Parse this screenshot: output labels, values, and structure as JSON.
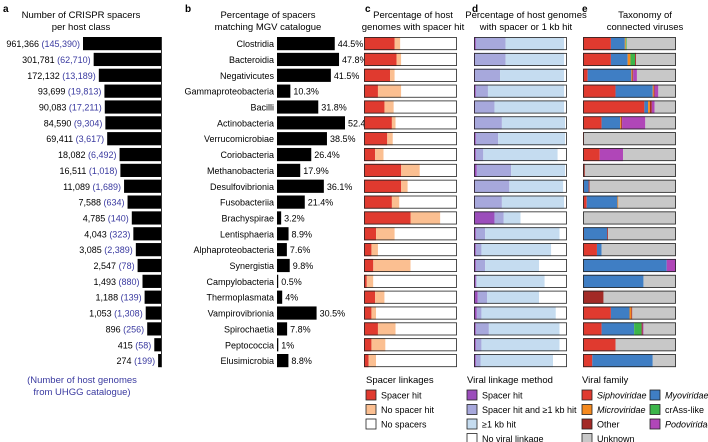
{
  "panels": {
    "a": {
      "letter": "a",
      "title_lines": [
        "Number of CRISPR spacers",
        "per host class"
      ],
      "footnote_lines": [
        "(Number of host genomes",
        "from UHGG catalogue)"
      ]
    },
    "b": {
      "letter": "b",
      "title_lines": [
        "Percentage of spacers",
        "matching MGV catalogue"
      ]
    },
    "c": {
      "letter": "c",
      "title_lines": [
        "Percentage of host",
        "genomes with spacer hit"
      ]
    },
    "d": {
      "letter": "d",
      "title_lines": [
        "Percentage of host genomes",
        "with spacer or 1 kb hit"
      ]
    },
    "e": {
      "letter": "e",
      "title_lines": [
        "Taxonomy of",
        "connected viruses"
      ]
    }
  },
  "legends": {
    "c": {
      "title": "Spacer linkages",
      "items": [
        {
          "label": "Spacer hit",
          "color": "#e03a2f"
        },
        {
          "label": "No spacer hit",
          "color": "#fbbf91"
        },
        {
          "label": "No spacers",
          "color": "#ffffff"
        }
      ]
    },
    "d": {
      "title": "Viral linkage method",
      "items": [
        {
          "label": "Spacer hit",
          "color": "#9b4dbb"
        },
        {
          "label": "Spacer hit and ≥1 kb hit",
          "color": "#a7a8dc"
        },
        {
          "label": "≥1 kb hit",
          "color": "#c5dcf0"
        },
        {
          "label": "No viral linkage",
          "color": "#ffffff"
        }
      ]
    },
    "e": {
      "title": "Viral family",
      "items": [
        {
          "label": "Siphoviridae",
          "color": "#e03a2f",
          "italic": true
        },
        {
          "label": "Myoviridae",
          "color": "#3f7ec4",
          "italic": true
        },
        {
          "label": "Microviridae",
          "color": "#f58a1f",
          "italic": true
        },
        {
          "label": "crAss-like",
          "color": "#3cb54a",
          "italic": false
        },
        {
          "label": "Other",
          "color": "#a32a26",
          "italic": false
        },
        {
          "label": "Podoviridae",
          "color": "#b046b8",
          "italic": true
        },
        {
          "label": "Unknown",
          "color": "#c8c8c8",
          "italic": false
        }
      ]
    }
  },
  "chart_data": [
    {
      "panel": "a",
      "type": "bar",
      "orientation": "horizontal",
      "title": "Number of CRISPR spacers per host class",
      "values": [
        961366,
        301781,
        172132,
        93699,
        90083,
        84590,
        69411,
        18082,
        16511,
        11089,
        7588,
        4785,
        4043,
        3085,
        2547,
        1493,
        1188,
        1053,
        896,
        415,
        274
      ],
      "value_labels": [
        "961,366",
        "301,781",
        "172,132",
        "93,699",
        "90,083",
        "84,590",
        "69,411",
        "18,082",
        "16,511",
        "11,089",
        "7,588",
        "4,785",
        "4,043",
        "3,085",
        "2,547",
        "1,493",
        "1,188",
        "1,053",
        "896",
        "415",
        "274"
      ],
      "genome_labels": [
        "(145,390)",
        "(62,710)",
        "(13,189)",
        "(19,813)",
        "(17,211)",
        "(9,304)",
        "(3,617)",
        "(6,492)",
        "(1,018)",
        "(1,689)",
        "(634)",
        "(140)",
        "(323)",
        "(2,389)",
        "(78)",
        "(880)",
        "(139)",
        "(1,308)",
        "(256)",
        "(58)",
        "(199)"
      ]
    },
    {
      "panel": "b",
      "type": "bar",
      "orientation": "horizontal",
      "title": "Percentage of spacers matching MGV catalogue",
      "categories": [
        "Clostridia",
        "Bacteroidia",
        "Negativicutes",
        "Gammaproteobacteria",
        "Bacilli",
        "Actinobacteria",
        "Verrucomicrobiae",
        "Coriobacteria",
        "Methanobacteria",
        "Desulfovibrionia",
        "Fusobacteriia",
        "Brachyspirae",
        "Lentisphaeria",
        "Alphaproteobacteria",
        "Synergistia",
        "Campylobacteria",
        "Thermoplasmata",
        "Vampirovibrionia",
        "Spirochaetia",
        "Peptococcia",
        "Elusimicrobia"
      ],
      "values": [
        44.5,
        47.8,
        41.5,
        10.3,
        31.8,
        52.4,
        38.5,
        26.4,
        17.9,
        36.1,
        21.4,
        3.2,
        8.9,
        7.6,
        9.8,
        0.5,
        4,
        30.5,
        7.8,
        1,
        8.8
      ],
      "value_labels": [
        "44.5%",
        "47.8%",
        "41.5%",
        "10.3%",
        "31.8%",
        "52.4%",
        "38.5%",
        "26.4%",
        "17.9%",
        "36.1%",
        "21.4%",
        "3.2%",
        "8.9%",
        "7.6%",
        "9.8%",
        "0.5%",
        "4%",
        "30.5%",
        "7.8%",
        "1%",
        "8.8%"
      ],
      "xlim": [
        0,
        60
      ]
    },
    {
      "panel": "c",
      "type": "bar",
      "orientation": "horizontal",
      "stacked": true,
      "unit": "percent",
      "title": "Percentage of host genomes with spacer hit",
      "series": [
        {
          "name": "Spacer hit",
          "color": "#e03a2f",
          "values": [
            33,
            35,
            28,
            15,
            22,
            30,
            25,
            12,
            40,
            40,
            30,
            50,
            13,
            8,
            10,
            3,
            12,
            8,
            15,
            8,
            5
          ]
        },
        {
          "name": "No spacer hit",
          "color": "#fbbf91",
          "values": [
            6,
            5,
            5,
            25,
            10,
            4,
            6,
            9,
            20,
            7,
            8,
            32,
            20,
            7,
            40,
            7,
            10,
            5,
            19,
            15,
            8
          ]
        },
        {
          "name": "No spacers",
          "color": "#ffffff",
          "values": [
            61,
            60,
            67,
            60,
            68,
            66,
            69,
            79,
            40,
            53,
            62,
            18,
            67,
            85,
            50,
            90,
            78,
            87,
            66,
            77,
            87
          ]
        }
      ]
    },
    {
      "panel": "d",
      "type": "bar",
      "orientation": "horizontal",
      "stacked": true,
      "unit": "percent",
      "title": "Percentage of host genomes with spacer or 1 kb hit",
      "series": [
        {
          "name": "Spacer hit",
          "color": "#9b4dbb",
          "values": [
            2,
            1,
            1,
            2,
            1,
            1,
            2,
            2,
            3,
            1,
            1,
            22,
            2,
            2,
            2,
            2,
            4,
            3,
            2,
            2,
            2
          ]
        },
        {
          "name": "Spacer hit and ≥1 kb hit",
          "color": "#a7a8dc",
          "values": [
            32,
            33,
            27,
            13,
            21,
            29,
            24,
            8,
            37,
            37,
            29,
            10,
            10,
            6,
            10,
            1,
            10,
            5,
            14,
            6,
            5
          ]
        },
        {
          "name": "≥1 kb hit",
          "color": "#c5dcf0",
          "values": [
            63,
            63,
            69,
            82,
            75,
            68,
            72,
            80,
            58,
            58,
            67,
            18,
            80,
            75,
            58,
            73,
            56,
            80,
            76,
            84,
            78
          ]
        },
        {
          "name": "No viral linkage",
          "color": "#ffffff",
          "values": [
            3,
            3,
            3,
            3,
            3,
            2,
            2,
            10,
            2,
            4,
            3,
            50,
            8,
            17,
            30,
            24,
            30,
            12,
            8,
            8,
            15
          ]
        }
      ]
    },
    {
      "panel": "e",
      "type": "bar",
      "orientation": "horizontal",
      "stacked": true,
      "unit": "percent",
      "title": "Taxonomy of connected viruses",
      "series": [
        {
          "name": "Siphoviridae",
          "color": "#e03a2f",
          "values": [
            30,
            30,
            5,
            35,
            66,
            20,
            1,
            18,
            1,
            1,
            4,
            0,
            1,
            15,
            0,
            0,
            0,
            30,
            20,
            35,
            10
          ]
        },
        {
          "name": "Myoviridae",
          "color": "#3f7ec4",
          "values": [
            15,
            18,
            47,
            40,
            4,
            20,
            0,
            0,
            0,
            5,
            33,
            0,
            25,
            5,
            90,
            65,
            0,
            20,
            35,
            0,
            65
          ]
        },
        {
          "name": "Microviridae",
          "color": "#f58a1f",
          "values": [
            1,
            3,
            1,
            1,
            2,
            1,
            0,
            0,
            0,
            0,
            1,
            0,
            0,
            0,
            0,
            0,
            0,
            2,
            0,
            0,
            0
          ]
        },
        {
          "name": "crAss-like",
          "color": "#3cb54a",
          "values": [
            1,
            5,
            0,
            0,
            0,
            0,
            0,
            0,
            0,
            0,
            0,
            0,
            0,
            0,
            0,
            0,
            0,
            0,
            8,
            0,
            0
          ]
        },
        {
          "name": "Other",
          "color": "#a32a26",
          "values": [
            0,
            1,
            1,
            1,
            2,
            1,
            0,
            0,
            1,
            1,
            0,
            0,
            1,
            0,
            0,
            0,
            22,
            1,
            1,
            0,
            0
          ]
        },
        {
          "name": "Podoviridae",
          "color": "#b046b8",
          "values": [
            0,
            0,
            4,
            4,
            3,
            25,
            0,
            25,
            0,
            0,
            0,
            0,
            0,
            0,
            10,
            0,
            0,
            0,
            1,
            0,
            0
          ]
        },
        {
          "name": "Unknown",
          "color": "#c8c8c8",
          "values": [
            53,
            43,
            42,
            19,
            23,
            33,
            99,
            57,
            98,
            93,
            62,
            100,
            73,
            80,
            0,
            35,
            78,
            47,
            35,
            65,
            25
          ]
        }
      ]
    }
  ]
}
